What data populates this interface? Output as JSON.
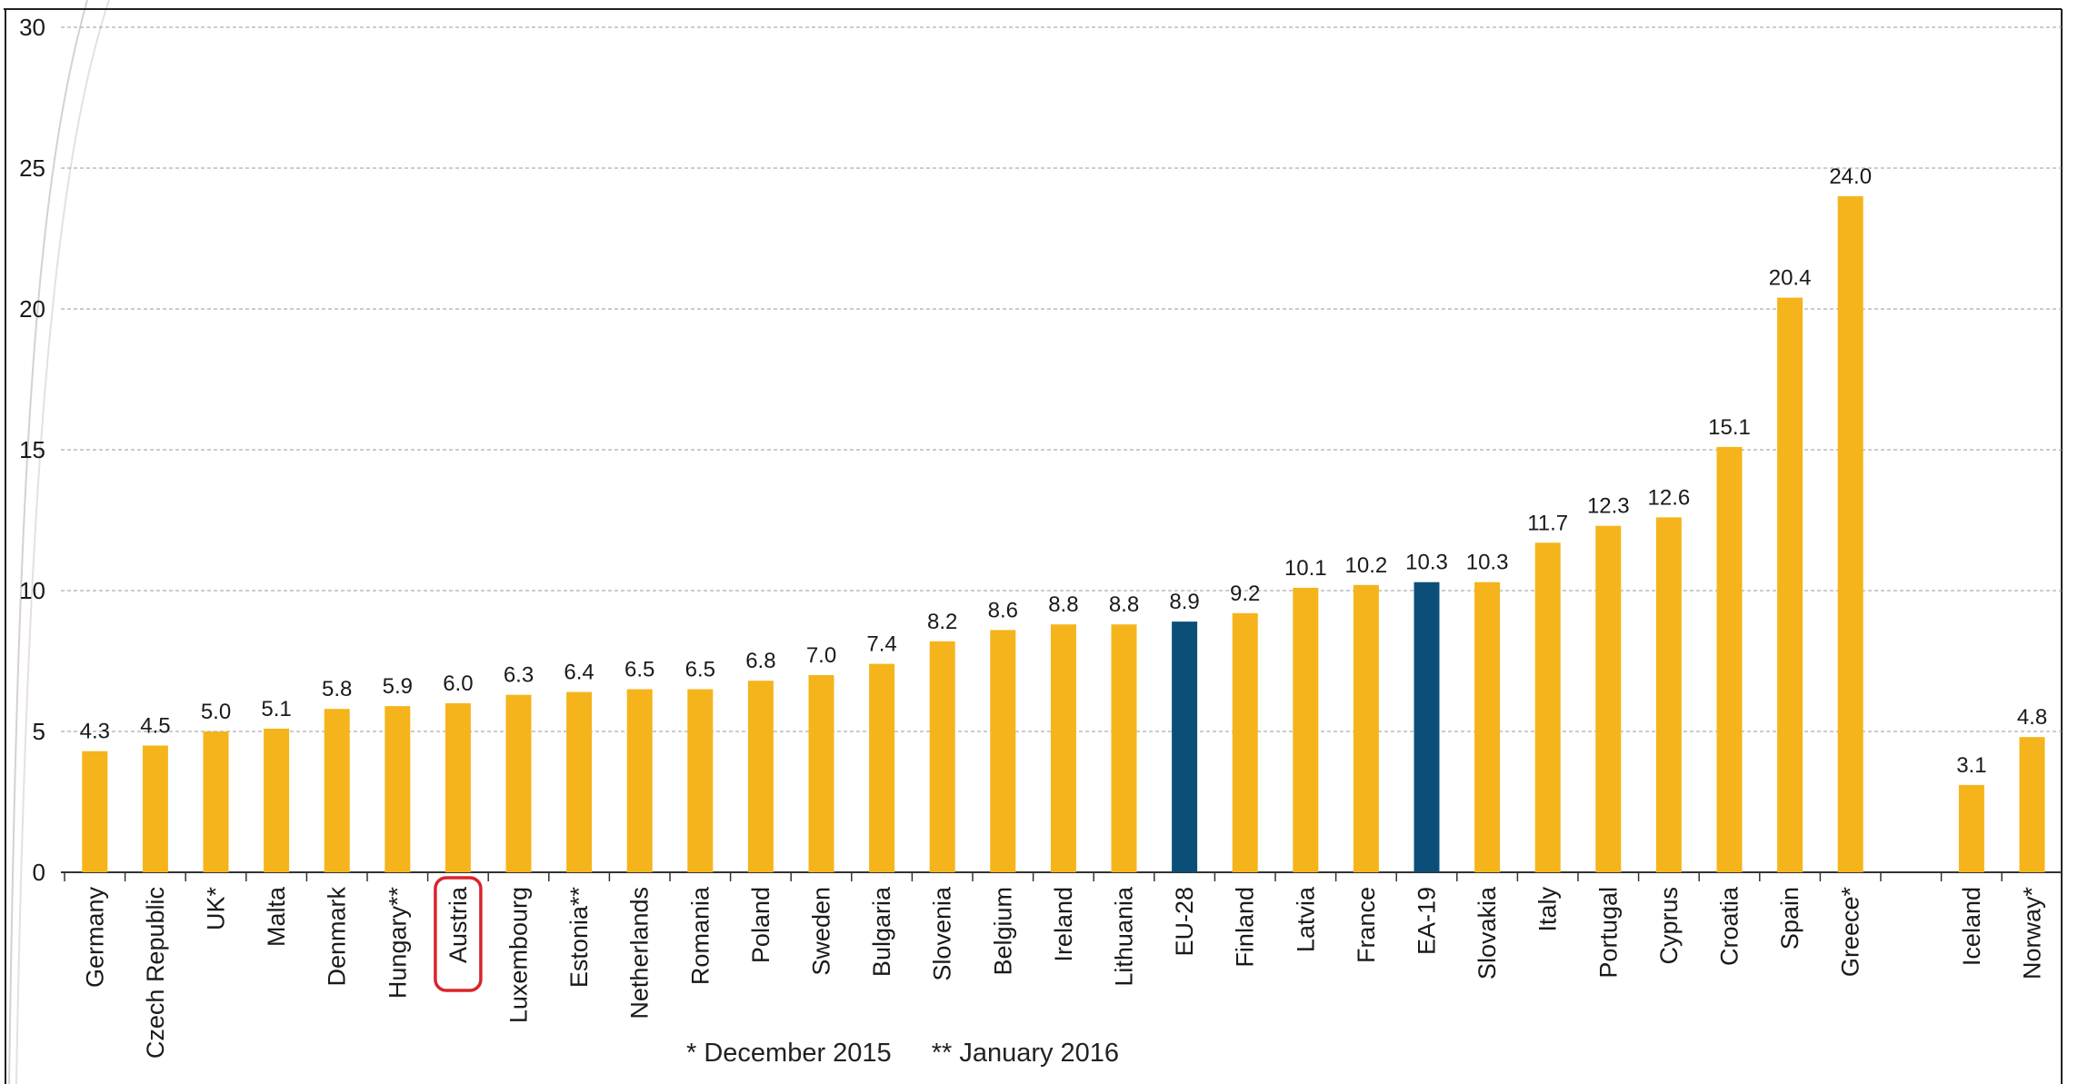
{
  "chart_data": {
    "type": "bar",
    "title": "",
    "xlabel": "",
    "ylabel": "",
    "ylim": [
      0,
      30
    ],
    "yticks": [
      "0",
      "5",
      "10",
      "15",
      "20",
      "25",
      "30"
    ],
    "grid": true,
    "categories": [
      "Germany",
      "Czech Republic",
      "UK*",
      "Malta",
      "Denmark",
      "Hungary**",
      "Austria",
      "Luxembourg",
      "Estonia**",
      "Netherlands",
      "Romania",
      "Poland",
      "Sweden",
      "Bulgaria",
      "Slovenia",
      "Belgium",
      "Ireland",
      "Lithuania",
      "EU-28",
      "Finland",
      "Latvia",
      "France",
      "EA-19",
      "Slovakia",
      "Italy",
      "Portugal",
      "Cyprus",
      "Croatia",
      "Spain",
      "Greece*",
      "Iceland",
      "Norway*"
    ],
    "values": [
      4.3,
      4.5,
      5.0,
      5.1,
      5.8,
      5.9,
      6.0,
      6.3,
      6.4,
      6.5,
      6.5,
      6.8,
      7.0,
      7.4,
      8.2,
      8.6,
      8.8,
      8.8,
      8.9,
      9.2,
      10.1,
      10.2,
      10.3,
      10.3,
      11.7,
      12.3,
      12.6,
      15.1,
      20.4,
      24.0,
      3.1,
      4.8
    ],
    "value_labels": [
      "4.3",
      "4.5",
      "5.0",
      "5.1",
      "5.8",
      "5.9",
      "6.0",
      "6.3",
      "6.4",
      "6.5",
      "6.5",
      "6.8",
      "7.0",
      "7.4",
      "8.2",
      "8.6",
      "8.8",
      "8.8",
      "8.9",
      "9.2",
      "10.1",
      "10.2",
      "10.3",
      "10.3",
      "11.7",
      "12.3",
      "12.6",
      "15.1",
      "20.4",
      "24.0",
      "3.1",
      "4.8"
    ],
    "group_gap_after": "Greece*",
    "highlighted_categories": [
      "EU-28",
      "EA-19"
    ],
    "circled_category": "Austria",
    "colors": {
      "bar": "#f5b41b",
      "bar_highlight": "#0b4f78",
      "grid": "#9a9a9a",
      "axis": "#333333",
      "text": "#1a1a1a",
      "circle": "#d9242c"
    }
  },
  "footnotes": {
    "single": "* December 2015",
    "double": "** January 2016"
  }
}
